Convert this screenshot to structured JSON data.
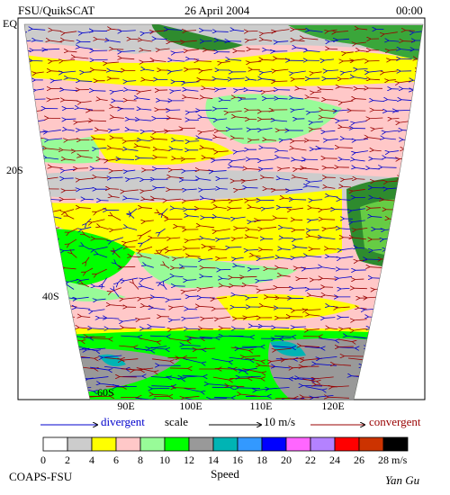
{
  "header": {
    "title": "FSU/QuikSCAT",
    "date": "26 April 2004",
    "time": "00:00"
  },
  "map": {
    "lat_labels": [
      "EQ",
      "20S",
      "40S",
      "60S"
    ],
    "lon_labels": [
      "90E",
      "100E",
      "110E",
      "120E"
    ]
  },
  "scale_legend": {
    "divergent": "divergent",
    "scale": "scale",
    "reference": "10 m/s",
    "convergent": "convergent"
  },
  "colorbar": {
    "ticks": [
      0,
      2,
      4,
      6,
      8,
      10,
      12,
      14,
      16,
      18,
      20,
      22,
      24,
      26,
      28
    ],
    "unit": "m/s",
    "label": "Speed",
    "colors": [
      "#ffffff",
      "#cccccc",
      "#ffff00",
      "#ffc8c8",
      "#98fb98",
      "#00ff00",
      "#999999",
      "#00b4b4",
      "#3399ff",
      "#0000ff",
      "#ff66ff",
      "#b482ff",
      "#ff0000",
      "#cc3300",
      "#000000"
    ]
  },
  "footer": {
    "credit": "COAPS-FSU",
    "author": "Yan Gu"
  }
}
